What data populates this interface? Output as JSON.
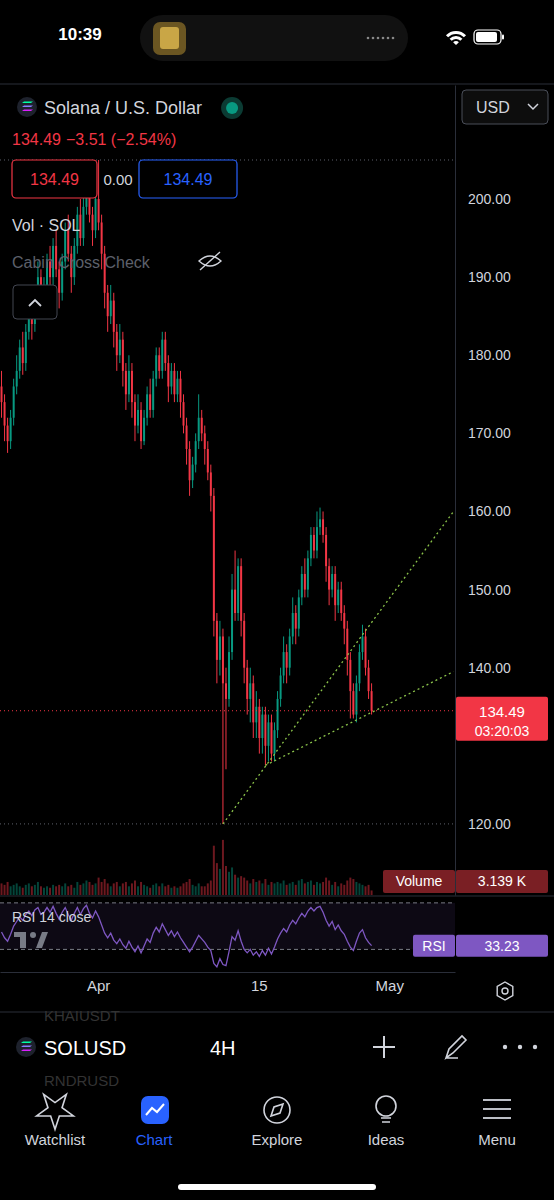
{
  "status_bar": {
    "time": "10:39"
  },
  "header": {
    "price": "134.49",
    "change": "−3.51 (−2.54%)",
    "sell": "134.49",
    "spread": "0.00",
    "buy": "134.49",
    "indicators": [
      "Vol · SOL",
      "Cabin Cross Check"
    ],
    "currency": "USD"
  },
  "chart_data": {
    "type": "candlestick",
    "title": "Solana / U.S. Dollar",
    "categories": [
      null,
      null,
      null,
      null,
      null,
      null,
      null,
      null,
      null,
      null,
      null,
      null,
      null,
      null,
      null,
      null,
      null,
      null,
      null,
      null,
      null,
      null,
      null,
      null,
      null,
      null,
      null,
      null,
      null,
      null,
      null,
      null,
      "Apr",
      null,
      null,
      null,
      null,
      null,
      null,
      null,
      null,
      null,
      null,
      null,
      null,
      null,
      null,
      null,
      null,
      null,
      null,
      null,
      null,
      null,
      null,
      null,
      null,
      null,
      null,
      null,
      null,
      null,
      null,
      null,
      null,
      null,
      null,
      null,
      null,
      null,
      null,
      null,
      null,
      null,
      null,
      null,
      null,
      null,
      null,
      null,
      null,
      null,
      null,
      null,
      null,
      "15",
      null,
      null,
      null,
      null,
      null,
      null,
      null,
      null,
      null,
      null,
      null,
      null,
      null,
      null,
      null,
      null,
      null,
      null,
      null,
      null,
      null,
      null,
      null,
      null,
      null,
      null,
      null,
      null,
      null,
      null,
      null,
      null,
      null,
      null,
      null,
      null,
      null,
      null,
      null,
      null,
      null,
      null,
      "May",
      null,
      null,
      null,
      null,
      null,
      null,
      null,
      null,
      null,
      null,
      null,
      null,
      null,
      null,
      null,
      null,
      null,
      null,
      null,
      null,
      null
    ],
    "open": [
      176,
      174,
      171,
      169,
      172,
      176,
      178,
      181,
      179,
      183,
      186,
      184,
      188,
      190,
      187,
      189,
      192,
      190,
      194,
      191,
      188,
      192,
      196,
      193,
      190,
      194,
      198,
      195,
      199,
      202,
      198,
      196,
      200,
      197,
      193,
      188,
      185,
      187,
      183,
      180,
      182,
      178,
      175,
      178,
      174,
      171,
      173,
      169,
      172,
      175,
      173,
      177,
      180,
      178,
      182,
      179,
      176,
      178,
      175,
      177,
      174,
      171,
      168,
      164,
      166,
      169,
      172,
      170,
      168,
      165,
      162,
      146,
      141,
      144,
      138,
      136,
      142,
      150,
      147,
      153,
      146,
      140,
      136,
      138,
      133,
      135,
      131,
      134,
      130,
      133,
      129,
      132,
      136,
      139,
      142,
      140,
      144,
      147,
      145,
      149,
      152,
      150,
      154,
      157,
      155,
      158,
      159,
      157,
      153,
      150,
      152,
      148,
      150,
      147,
      145,
      141,
      137,
      134,
      138,
      142,
      144,
      140,
      137,
      null,
      null,
      null,
      null,
      null,
      null,
      null,
      null,
      null,
      null,
      null,
      null,
      null,
      null,
      null,
      null,
      null,
      null,
      null,
      null,
      null,
      null,
      null,
      null,
      null,
      null,
      null
    ],
    "high": [
      178,
      175,
      172,
      173,
      177,
      180,
      182,
      183,
      184,
      188,
      187,
      189,
      192,
      191,
      190,
      193,
      194,
      195,
      196,
      192,
      193,
      197,
      198,
      194,
      195,
      199,
      200,
      201,
      203,
      203,
      199,
      202,
      205,
      198,
      194,
      189,
      189,
      188,
      184,
      184,
      183,
      179,
      180,
      179,
      175,
      175,
      174,
      173,
      176,
      177,
      178,
      181,
      181,
      183,
      183,
      180,
      179,
      179,
      178,
      178,
      175,
      172,
      169,
      167,
      170,
      175,
      173,
      171,
      169,
      166,
      163,
      147,
      146,
      145,
      140,
      144,
      152,
      155,
      154,
      154,
      147,
      141,
      140,
      139,
      137,
      136,
      135,
      135,
      134,
      134,
      133,
      137,
      140,
      144,
      143,
      145,
      149,
      148,
      150,
      153,
      154,
      155,
      158,
      158,
      160,
      160.5,
      160,
      158,
      154,
      153,
      153,
      151,
      151,
      148,
      146,
      142,
      138,
      139,
      143,
      145.5,
      145,
      141,
      138,
      null,
      null,
      null,
      null,
      null,
      null,
      null,
      null,
      null,
      null,
      null,
      null,
      null,
      null,
      null,
      null,
      null,
      null,
      null,
      null,
      null,
      null,
      null,
      null,
      null,
      null,
      null
    ],
    "low": [
      172,
      169,
      167.5,
      168,
      171,
      175,
      177,
      177.5,
      178,
      182,
      182,
      183,
      187,
      185,
      185.5,
      188,
      189,
      189,
      190,
      186,
      187,
      191,
      192,
      188,
      189,
      193,
      194,
      194,
      198,
      197,
      194,
      195,
      196,
      191,
      186,
      183,
      184,
      181,
      178,
      179,
      176,
      173,
      174,
      172,
      169,
      170,
      168,
      168.5,
      171,
      172,
      172,
      176,
      177,
      177,
      178,
      174,
      175,
      174,
      174,
      172,
      170,
      166,
      162,
      163,
      165,
      168,
      169,
      166,
      164,
      160,
      144,
      138,
      139,
      120,
      127,
      135,
      141,
      146,
      146,
      144,
      138,
      134,
      133,
      131,
      131,
      129,
      129,
      127.5,
      128,
      128,
      128,
      131,
      135,
      138,
      138,
      139,
      143,
      143,
      144,
      148,
      149,
      149,
      153,
      154,
      154,
      157,
      156,
      151,
      148,
      149,
      146,
      147,
      146,
      143,
      139,
      133.5,
      133.5,
      133,
      137,
      141,
      139,
      136,
      134,
      null,
      null,
      null,
      null,
      null,
      null,
      null,
      null,
      null,
      null,
      null,
      null,
      null,
      null,
      null,
      null,
      null,
      null,
      null,
      null,
      null,
      null,
      null,
      null,
      null,
      null,
      null
    ],
    "close": [
      174,
      171,
      169,
      172,
      176,
      178,
      181,
      179,
      183,
      186,
      184,
      188,
      190,
      187,
      189,
      192,
      190,
      194,
      191,
      188,
      192,
      196,
      193,
      190,
      194,
      198,
      195,
      199,
      202,
      198,
      196,
      200,
      197,
      193,
      188,
      185,
      187,
      183,
      180,
      182,
      178,
      175,
      178,
      174,
      171,
      173,
      169,
      172,
      175,
      173,
      177,
      180,
      178,
      182,
      179,
      176,
      178,
      175,
      177,
      174,
      171,
      168,
      164,
      166,
      169,
      172,
      170,
      168,
      165,
      162,
      146,
      141,
      144,
      138,
      136,
      142,
      150,
      147,
      153,
      146,
      140,
      136,
      138,
      133,
      135,
      131,
      134,
      130,
      133,
      129,
      132,
      136,
      139,
      142,
      140,
      144,
      147,
      145,
      149,
      152,
      150,
      154,
      157,
      155,
      158,
      159,
      157,
      153,
      150,
      152,
      148,
      150,
      147,
      145,
      141,
      137,
      134,
      138,
      142,
      144,
      140,
      137,
      134.49,
      null,
      null,
      null,
      null,
      null,
      null,
      null,
      null,
      null,
      null,
      null,
      null,
      null,
      null,
      null,
      null,
      null,
      null,
      null,
      null,
      null,
      null,
      null,
      null,
      null,
      null,
      null
    ],
    "ylim": [
      110.9,
      214.6
    ],
    "yticks": [
      {
        "value": 120,
        "label": "120.00"
      },
      {
        "value": 140,
        "label": "140.00"
      },
      {
        "value": 150,
        "label": "150.00"
      },
      {
        "value": 160,
        "label": "160.00"
      },
      {
        "value": 170,
        "label": "170.00"
      },
      {
        "value": 180,
        "label": "180.00"
      },
      {
        "value": 190,
        "label": "190.00"
      },
      {
        "value": 200,
        "label": "200.00"
      }
    ],
    "grid": false,
    "levels": [
      205,
      120
    ],
    "trendlines": [
      {
        "x": [
          73,
          149
        ],
        "y": [
          120,
          160
        ]
      },
      {
        "x": [
          87,
          149
        ],
        "y": [
          127.5,
          139.5
        ]
      }
    ],
    "last_price": {
      "value": 134.49,
      "label": "134.49",
      "countdown": "03:20:03"
    },
    "volume": {
      "name": "Volume",
      "label": "3.139 K",
      "ylim": [
        0,
        40
      ],
      "values": [
        8,
        7,
        9,
        6,
        7,
        8,
        6,
        5,
        7,
        8,
        6,
        7,
        9,
        6,
        5,
        6,
        5,
        7,
        6,
        7,
        6,
        8,
        6,
        7,
        5,
        9,
        7,
        8,
        10,
        9,
        7,
        8,
        12,
        9,
        11,
        8,
        6,
        8,
        9,
        6,
        8,
        9,
        6,
        8,
        10,
        6,
        9,
        7,
        6,
        5,
        7,
        8,
        6,
        8,
        6,
        7,
        5,
        6,
        5,
        6,
        8,
        9,
        11,
        7,
        6,
        8,
        6,
        6,
        8,
        10,
        34,
        22,
        18,
        38,
        20,
        16,
        19,
        14,
        12,
        13,
        12,
        10,
        8,
        11,
        9,
        10,
        8,
        11,
        7,
        9,
        8,
        9,
        8,
        10,
        7,
        8,
        9,
        7,
        10,
        11,
        8,
        9,
        10,
        7,
        9,
        8,
        9,
        12,
        10,
        7,
        9,
        6,
        8,
        7,
        10,
        12,
        11,
        9,
        8,
        7,
        6,
        7,
        3.139,
        null,
        null,
        null,
        null,
        null,
        null,
        null,
        null,
        null,
        null,
        null,
        null,
        null,
        null,
        null,
        null,
        null,
        null,
        null,
        null,
        null,
        null,
        null,
        null,
        null,
        null,
        null
      ]
    },
    "rsi": {
      "name": "RSI 14 close",
      "tag": "RSI",
      "label": "33.23",
      "ylim": [
        14,
        74.2
      ],
      "levels": [
        70,
        30
      ],
      "values": [
        45,
        40,
        37,
        43,
        50,
        54,
        58,
        55,
        60,
        63,
        59,
        64,
        66,
        60,
        62,
        66,
        62,
        67,
        61,
        56,
        62,
        66,
        60,
        55,
        61,
        66,
        60,
        65,
        68,
        61,
        57,
        63,
        58,
        51,
        44,
        40,
        44,
        38,
        35,
        39,
        34,
        31,
        37,
        32,
        28,
        33,
        27,
        33,
        39,
        36,
        44,
        49,
        45,
        52,
        47,
        42,
        46,
        41,
        45,
        40,
        36,
        32,
        28,
        32,
        37,
        42,
        39,
        36,
        32,
        29,
        18,
        15,
        22,
        17,
        16,
        28,
        41,
        38,
        46,
        37,
        30,
        27,
        30,
        25,
        28,
        24,
        29,
        25,
        31,
        26,
        32,
        39,
        44,
        48,
        45,
        51,
        55,
        52,
        57,
        61,
        58,
        63,
        66,
        63,
        66,
        67,
        62,
        55,
        50,
        54,
        47,
        51,
        46,
        43,
        37,
        32,
        29,
        37,
        44,
        47,
        40,
        36,
        33.23,
        null,
        null,
        null,
        null,
        null,
        null,
        null,
        null,
        null,
        null,
        null,
        null,
        null,
        null,
        null,
        null,
        null,
        null,
        null,
        null,
        null,
        null,
        null,
        null,
        null,
        null,
        null
      ]
    }
  },
  "toolbar": {
    "symbol": "SOLUSD",
    "interval": "4H",
    "hidden_symbols": [
      "KHAIUSDT",
      "RNDRUSD"
    ]
  },
  "tabs": [
    "Watchlist",
    "Chart",
    "Explore",
    "Ideas",
    "Menu"
  ]
}
